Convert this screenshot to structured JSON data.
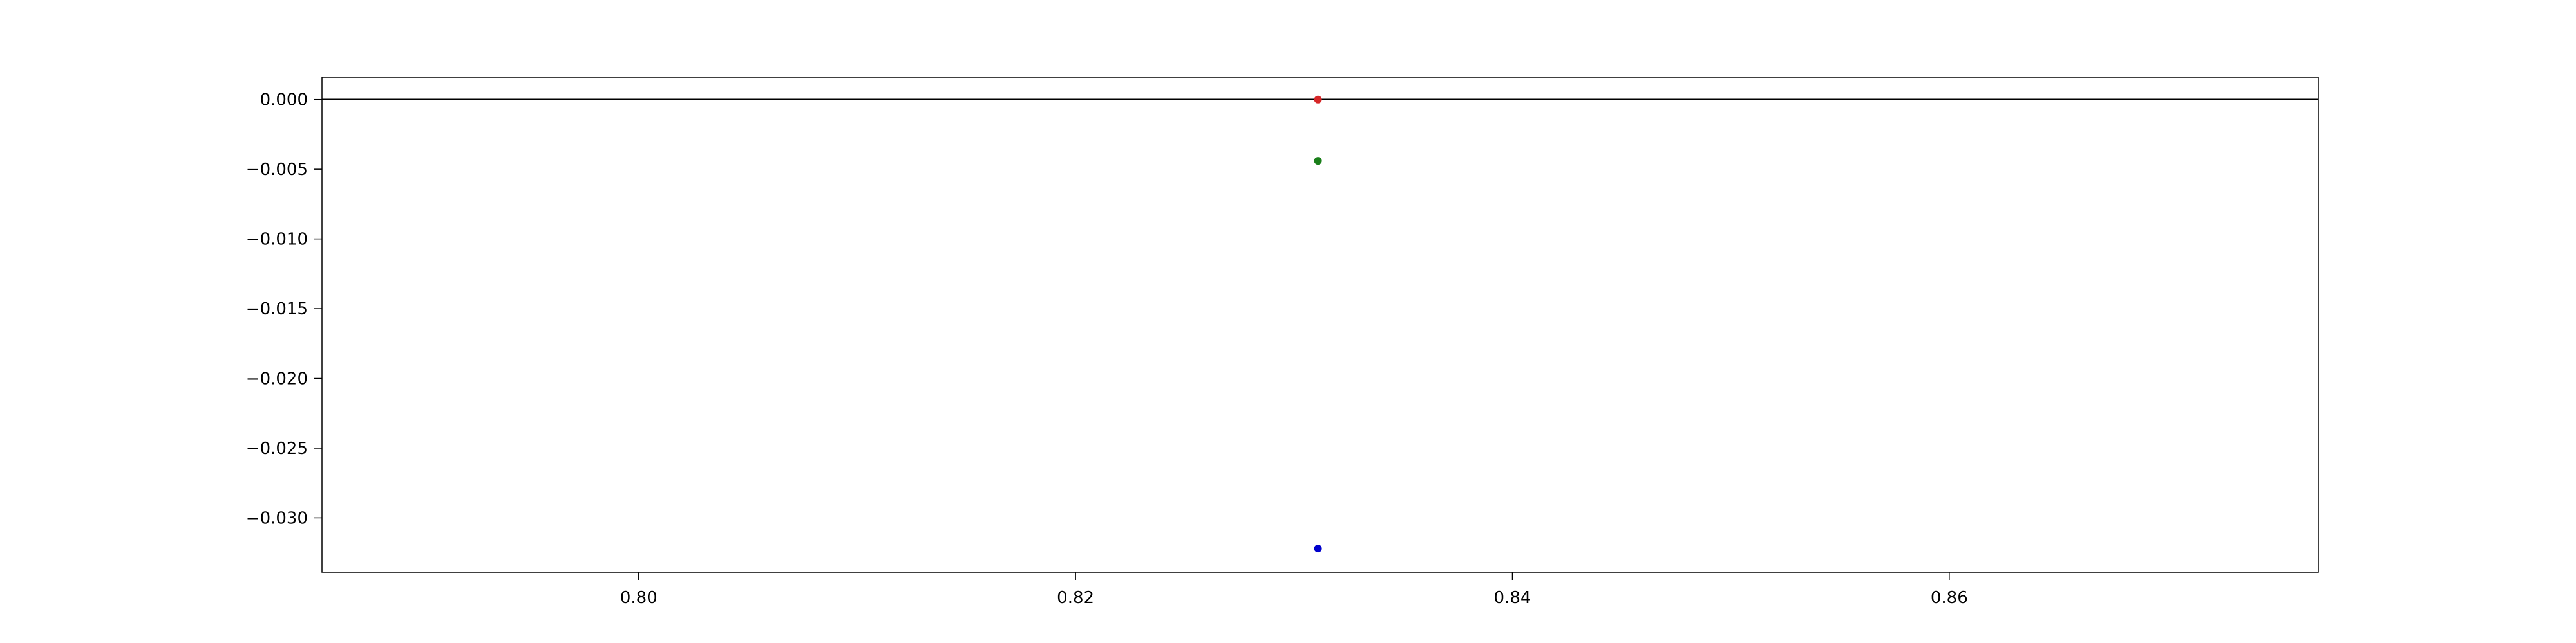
{
  "chart_data": {
    "type": "scatter",
    "title": "",
    "xlabel": "",
    "ylabel": "",
    "xlim": [
      0.7855,
      0.8769
    ],
    "ylim": [
      -0.0339,
      0.0016
    ],
    "grid": false,
    "legend": "none",
    "x_ticks": [
      {
        "value": 0.8,
        "label": "0.80"
      },
      {
        "value": 0.82,
        "label": "0.82"
      },
      {
        "value": 0.84,
        "label": "0.84"
      },
      {
        "value": 0.86,
        "label": "0.86"
      }
    ],
    "y_ticks": [
      {
        "value": 0.0,
        "label": "0.000"
      },
      {
        "value": -0.005,
        "label": "−0.005"
      },
      {
        "value": -0.01,
        "label": "−0.010"
      },
      {
        "value": -0.015,
        "label": "−0.015"
      },
      {
        "value": -0.02,
        "label": "−0.020"
      },
      {
        "value": -0.025,
        "label": "−0.025"
      },
      {
        "value": -0.03,
        "label": "−0.030"
      }
    ],
    "reference_line": {
      "y": 0.0,
      "color": "#000000"
    },
    "points": [
      {
        "x": 0.8311,
        "y": 0.0,
        "color": "#d62728"
      },
      {
        "x": 0.8311,
        "y": -0.0044,
        "color": "#1a7f1a"
      },
      {
        "x": 0.8311,
        "y": -0.0322,
        "color": "#0000cc"
      }
    ]
  }
}
